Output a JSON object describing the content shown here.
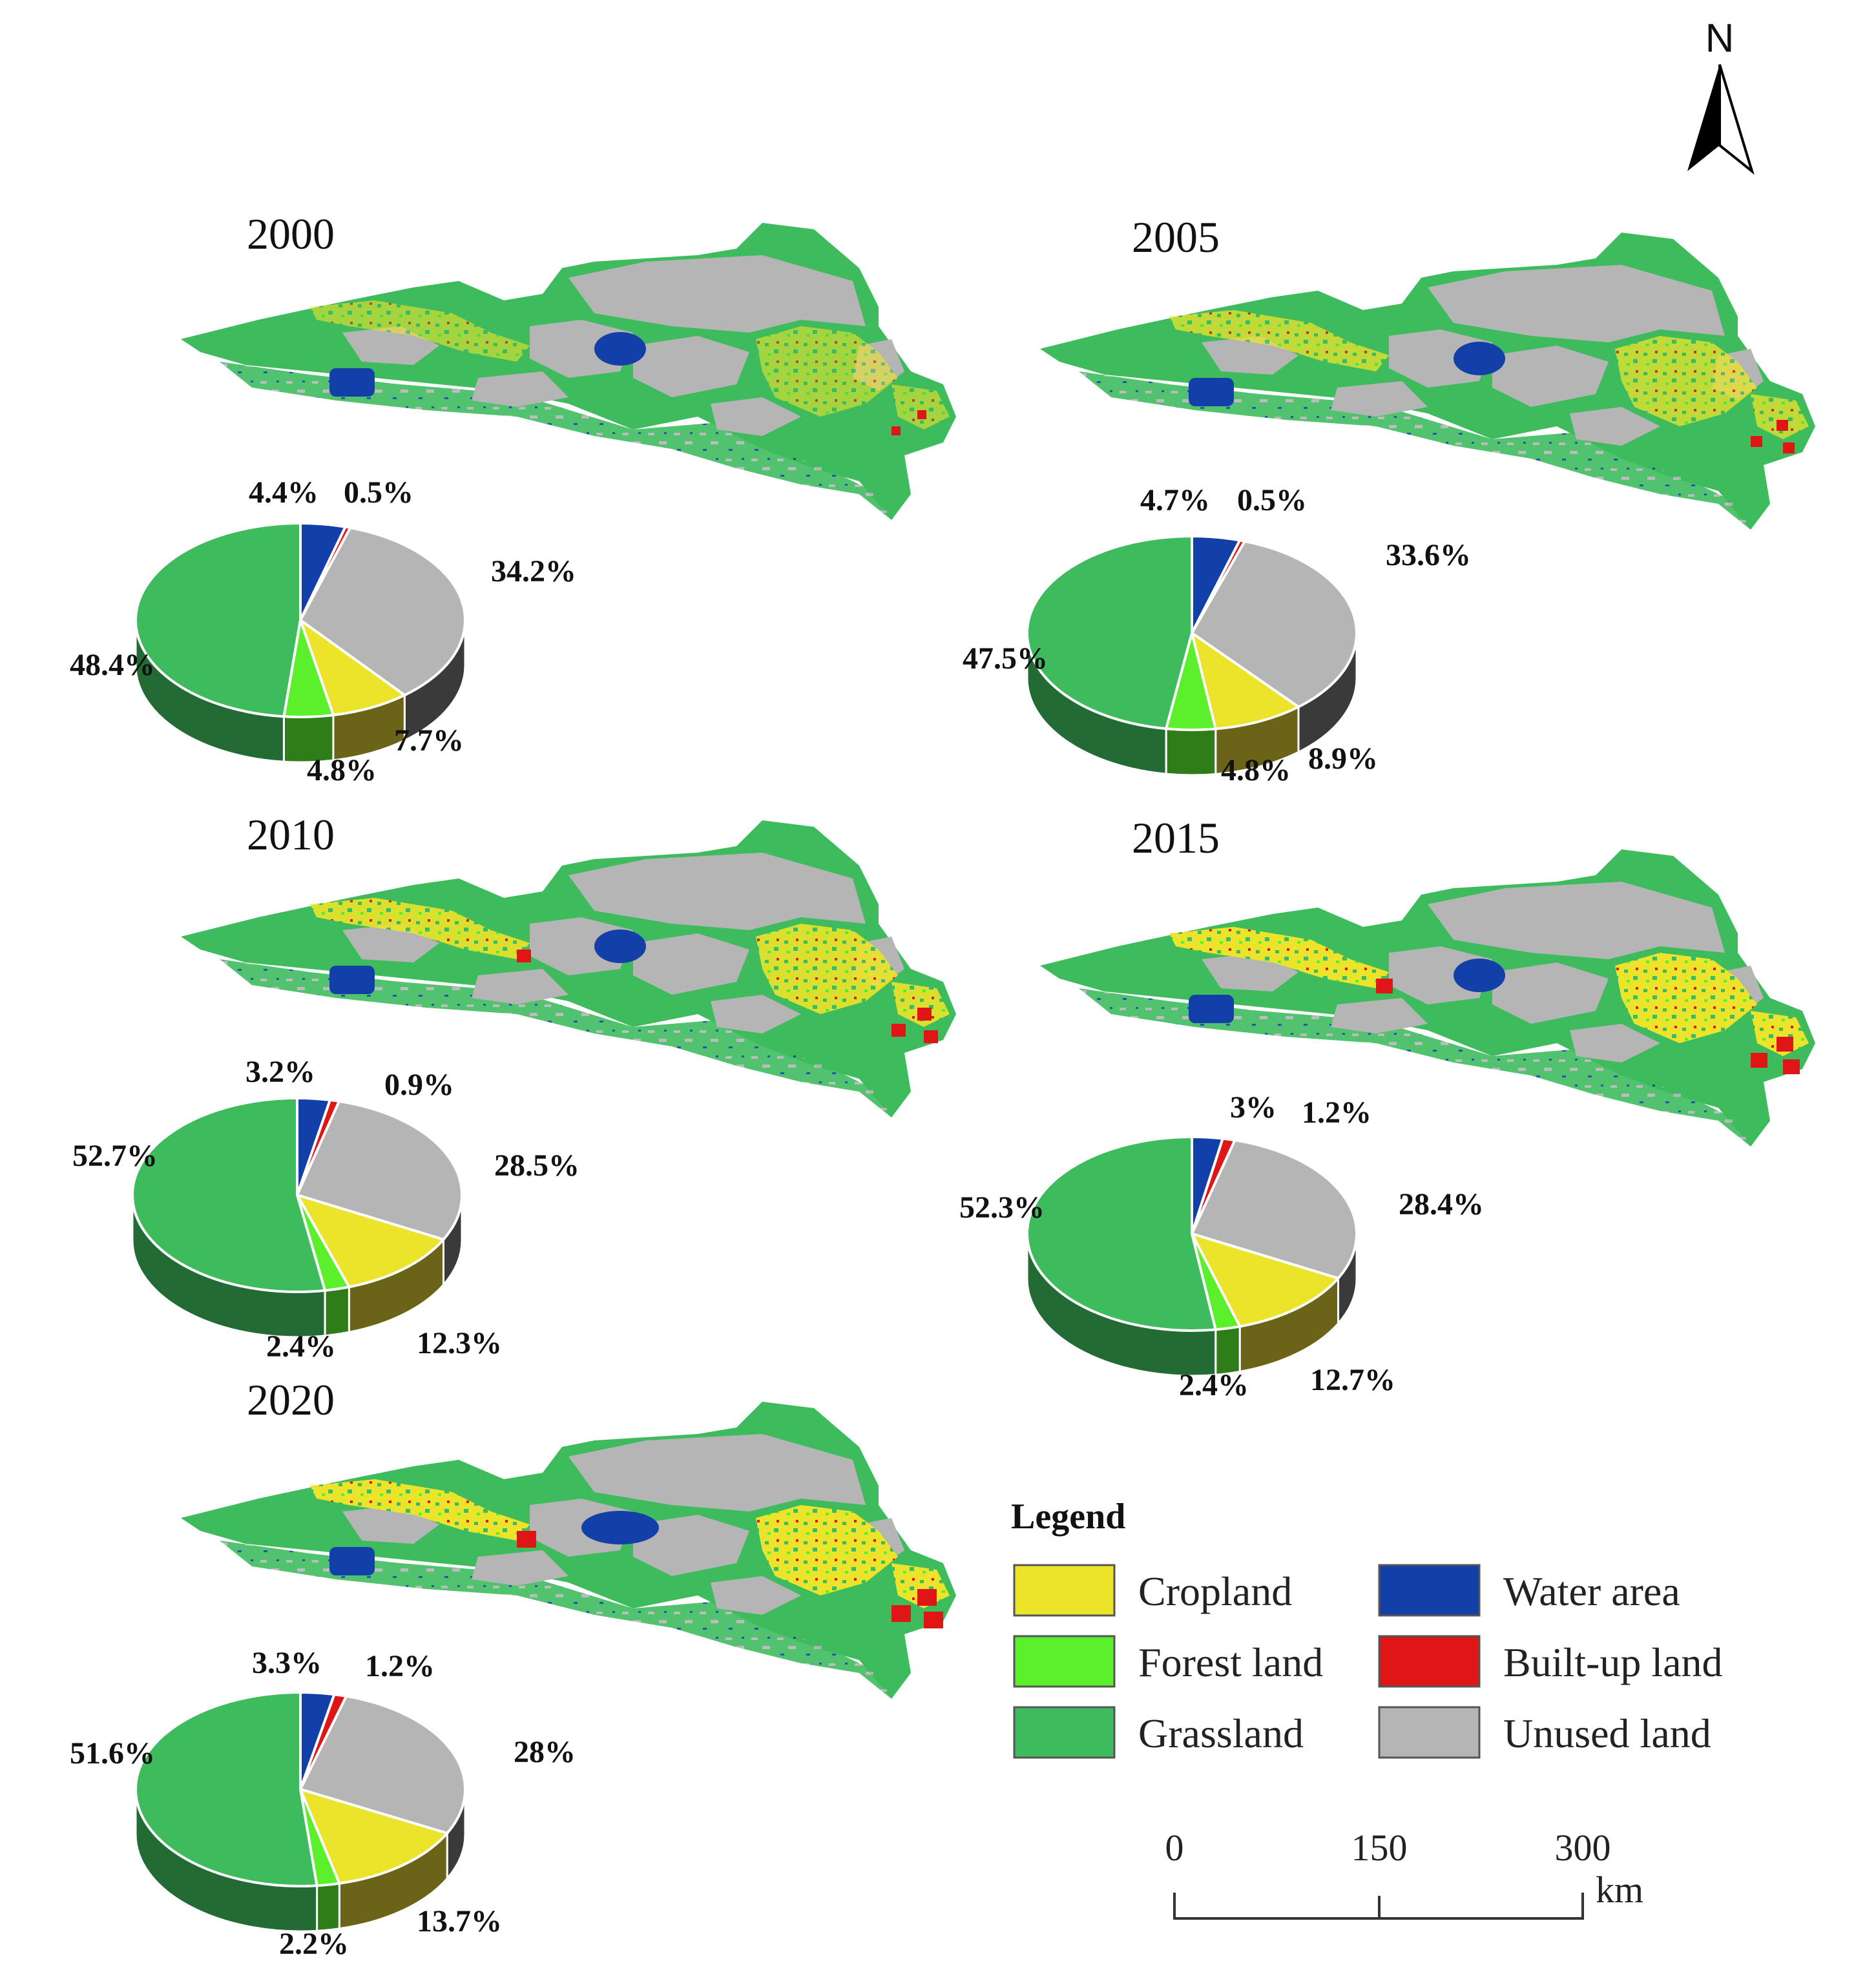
{
  "north_arrow": {
    "label": "N"
  },
  "legend": {
    "title": "Legend",
    "items": [
      {
        "key": "cropland",
        "label": "Cropland",
        "color": "#ece42a"
      },
      {
        "key": "forest",
        "label": "Forest land",
        "color": "#5cf02c"
      },
      {
        "key": "grassland",
        "label": "Grassland",
        "color": "#3ebb5d"
      },
      {
        "key": "water",
        "label": "Water area",
        "color": "#1240a8"
      },
      {
        "key": "builtup",
        "label": "Built-up land",
        "color": "#e01616"
      },
      {
        "key": "unused",
        "label": "Unused land",
        "color": "#b5b5b5"
      }
    ]
  },
  "scale_bar": {
    "ticks": [
      "0",
      "150",
      "300"
    ],
    "unit": "km"
  },
  "chart_data": [
    {
      "type": "pie",
      "title": "2000",
      "categories": [
        "Water area",
        "Built-up land",
        "Unused land",
        "Cropland",
        "Forest land",
        "Grassland"
      ],
      "values": [
        4.4,
        0.5,
        34.2,
        7.7,
        4.8,
        48.4
      ],
      "labels": [
        "4.4%",
        "0.5%",
        "34.2%",
        "7.7%",
        "4.8%",
        "48.4%"
      ]
    },
    {
      "type": "pie",
      "title": "2005",
      "categories": [
        "Water area",
        "Built-up land",
        "Unused land",
        "Cropland",
        "Forest land",
        "Grassland"
      ],
      "values": [
        4.7,
        0.5,
        33.6,
        8.9,
        4.8,
        47.5
      ],
      "labels": [
        "4.7%",
        "0.5%",
        "33.6%",
        "8.9%",
        "4.8%",
        "47.5%"
      ]
    },
    {
      "type": "pie",
      "title": "2010",
      "categories": [
        "Water area",
        "Built-up land",
        "Unused land",
        "Cropland",
        "Forest land",
        "Grassland"
      ],
      "values": [
        3.2,
        0.9,
        28.5,
        12.3,
        2.4,
        52.7
      ],
      "labels": [
        "3.2%",
        "0.9%",
        "28.5%",
        "12.3%",
        "2.4%",
        "52.7%"
      ]
    },
    {
      "type": "pie",
      "title": "2015",
      "categories": [
        "Water area",
        "Built-up land",
        "Unused land",
        "Cropland",
        "Forest land",
        "Grassland"
      ],
      "values": [
        3.0,
        1.2,
        28.4,
        12.7,
        2.4,
        52.3
      ],
      "labels": [
        "3%",
        "1.2%",
        "28.4%",
        "12.7%",
        "2.4%",
        "52.3%"
      ]
    },
    {
      "type": "pie",
      "title": "2020",
      "categories": [
        "Water area",
        "Built-up land",
        "Unused land",
        "Cropland",
        "Forest land",
        "Grassland"
      ],
      "values": [
        3.3,
        1.2,
        28.0,
        13.7,
        2.2,
        51.6
      ],
      "labels": [
        "3.3%",
        "1.2%",
        "28%",
        "13.7%",
        "2.2%",
        "51.6%"
      ]
    }
  ]
}
